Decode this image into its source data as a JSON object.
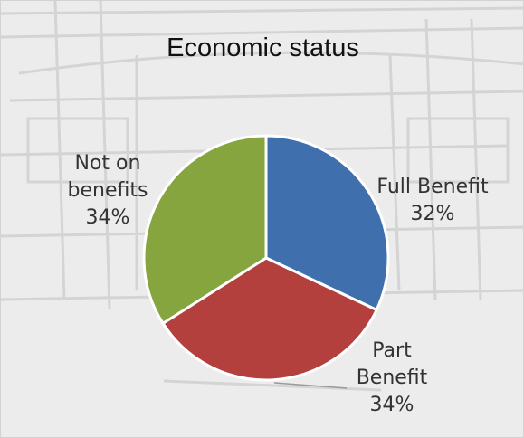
{
  "chart_data": {
    "type": "pie",
    "title": "Economic status",
    "slices": [
      {
        "label_lines": [
          "Full Benefit",
          "32%"
        ],
        "value": 32,
        "color": "#3f6fad"
      },
      {
        "label_lines": [
          "Part",
          "Benefit",
          "34%"
        ],
        "value": 34,
        "color": "#b3403d"
      },
      {
        "label_lines": [
          "Not on",
          "benefits",
          "34%"
        ],
        "value": 34,
        "color": "#86a53f"
      }
    ],
    "start_angle_deg": 0,
    "direction": "clockwise",
    "legend": "none"
  }
}
